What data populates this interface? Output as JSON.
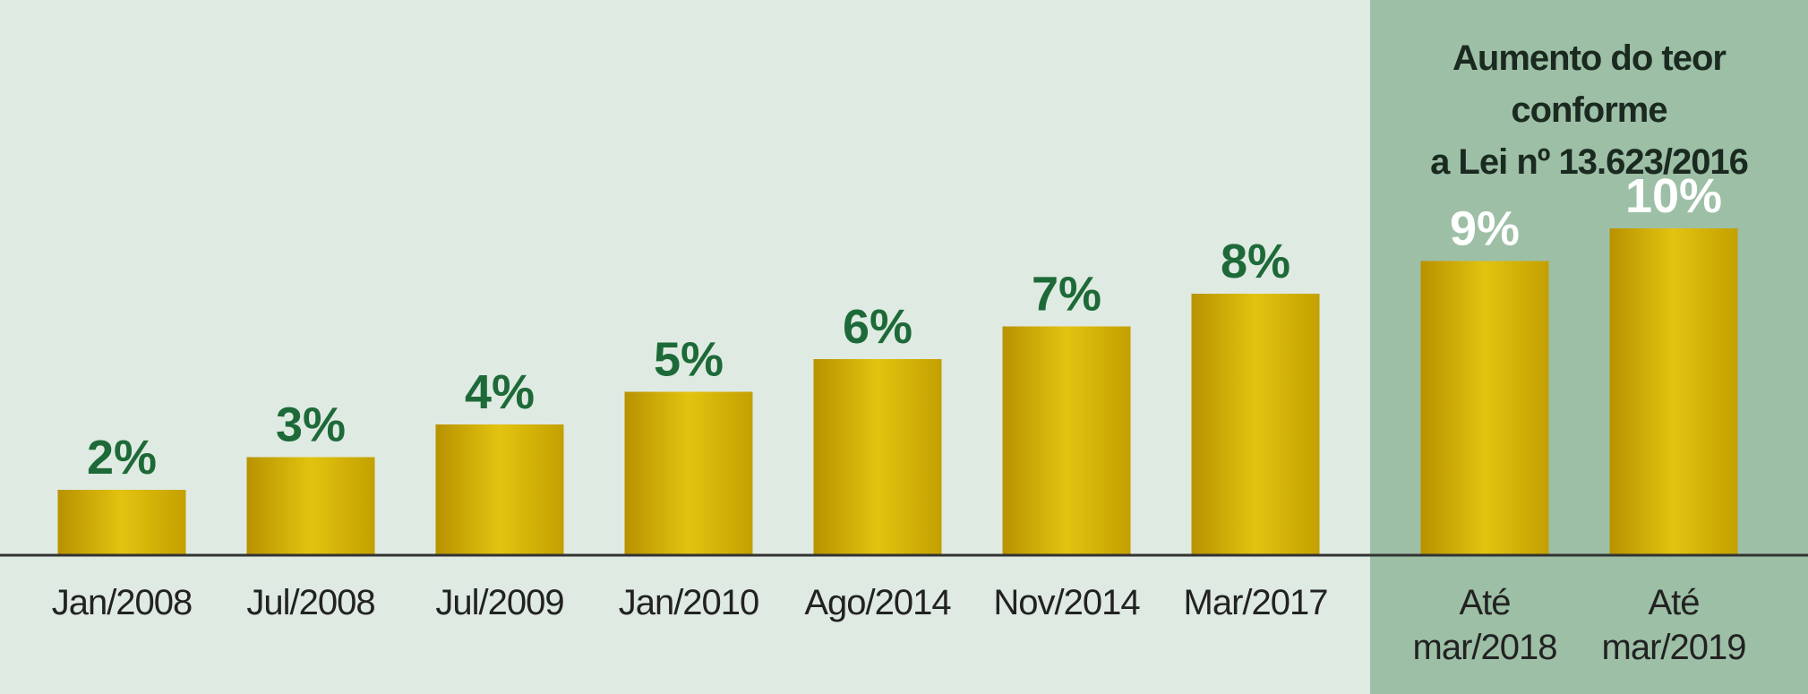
{
  "chart_data": {
    "type": "bar",
    "annotation": "Aumento do teor conforme\na Lei nº 13.623/2016",
    "categories": [
      "Jan/2008",
      "Jul/2008",
      "Jul/2009",
      "Jan/2010",
      "Ago/2014",
      "Nov/2014",
      "Mar/2017",
      "Até\nmar/2018",
      "Até\nmar/2019"
    ],
    "values": [
      2,
      3,
      4,
      5,
      6,
      7,
      8,
      9,
      10
    ],
    "value_labels": [
      "2%",
      "3%",
      "4%",
      "5%",
      "6%",
      "7%",
      "8%",
      "9%",
      "10%"
    ],
    "color": "#d4ae00",
    "label_color": "#1d6a38",
    "ylim": [
      0,
      10
    ]
  }
}
